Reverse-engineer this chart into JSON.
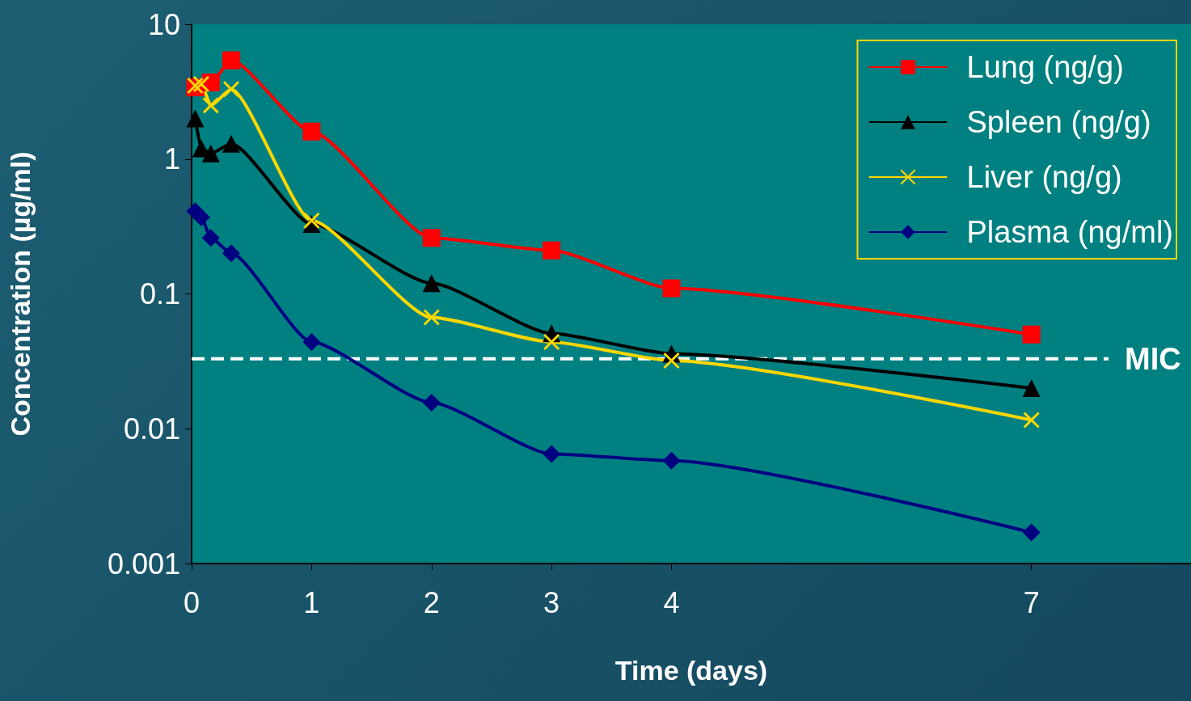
{
  "chart_data": {
    "type": "line",
    "xlabel": "Time (days)",
    "ylabel": "Concentration (µg/ml)",
    "log": "y",
    "xlim": [
      0,
      8.33
    ],
    "xticks": [
      0,
      1,
      2,
      3,
      4,
      7
    ],
    "ylim": [
      0.001,
      10
    ],
    "yticks": [
      0.001,
      0.01,
      0.1,
      1,
      10
    ],
    "grid": false,
    "legend": "top right",
    "line_style": "solid",
    "series": [
      {
        "name": "Lung (ng/g)",
        "color": "#ff0000",
        "marker": "square",
        "x": [
          0.03,
          0.16,
          0.33,
          1,
          2,
          3,
          4,
          7
        ],
        "values": [
          3.4,
          3.7,
          5.4,
          1.6,
          0.26,
          0.21,
          0.11,
          0.05
        ]
      },
      {
        "name": "Spleen (ng/g)",
        "color": "#000000",
        "marker": "triangle",
        "x": [
          0.03,
          0.08,
          0.16,
          0.33,
          1,
          2,
          3,
          4,
          7
        ],
        "values": [
          2.0,
          1.2,
          1.1,
          1.3,
          0.33,
          0.12,
          0.051,
          0.036,
          0.02
        ]
      },
      {
        "name": "Liver (ng/g)",
        "color": "#ffd700",
        "marker": "cross",
        "x": [
          0.03,
          0.08,
          0.16,
          0.33,
          1,
          2,
          3,
          4,
          7
        ],
        "values": [
          3.5,
          3.6,
          2.5,
          3.3,
          0.35,
          0.067,
          0.044,
          0.032,
          0.0116
        ]
      },
      {
        "name": "Plasma (ng/ml)",
        "color": "#000080",
        "marker": "diamond",
        "x": [
          0.03,
          0.08,
          0.16,
          0.33,
          1,
          2,
          3,
          4,
          7
        ],
        "values": [
          0.41,
          0.37,
          0.26,
          0.2,
          0.044,
          0.0156,
          0.0065,
          0.0058,
          0.0017
        ]
      }
    ],
    "ref_lines": [
      {
        "axis": "y",
        "value": 0.033,
        "label": "MIC",
        "color": "#ffffff",
        "line_style": "dashed"
      }
    ]
  }
}
